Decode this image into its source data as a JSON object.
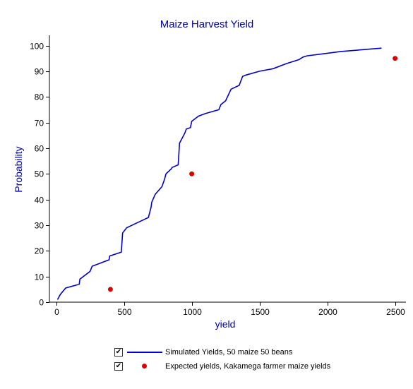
{
  "chart_data": {
    "type": "line",
    "title": "Maize Harvest Yield",
    "xlabel": "yield",
    "ylabel": "Probability",
    "xlim": [
      -50,
      2580
    ],
    "ylim": [
      0,
      104
    ],
    "x_ticks": [
      0,
      500,
      1000,
      1500,
      2000,
      2500
    ],
    "y_ticks": [
      0,
      10,
      20,
      30,
      40,
      50,
      60,
      70,
      80,
      90,
      100
    ],
    "x_tick_labels": [
      "0",
      "500",
      "1000",
      "1500",
      "2000",
      "2500"
    ],
    "y_tick_labels": [
      "0",
      "10",
      "20",
      "30",
      "40",
      "50",
      "60",
      "70",
      "80",
      "90",
      "100"
    ],
    "grid": false,
    "legend_position": "bottom",
    "series": [
      {
        "name": "Simulated Yields, 50 maize 50 beans",
        "type": "line",
        "color": "#0000cc",
        "checked": true,
        "x": [
          10,
          30,
          70,
          170,
          175,
          250,
          265,
          390,
          395,
          480,
          490,
          520,
          600,
          680,
          700,
          705,
          730,
          780,
          800,
          810,
          850,
          855,
          900,
          910,
          930,
          950,
          960,
          990,
          1000,
          1050,
          1100,
          1200,
          1215,
          1250,
          1290,
          1350,
          1375,
          1400,
          1500,
          1600,
          1700,
          1790,
          1820,
          1850,
          2000,
          2100,
          2400
        ],
        "y": [
          1,
          3,
          5.5,
          7,
          9,
          12,
          14,
          16.5,
          18,
          19.5,
          27,
          29,
          31,
          33,
          37,
          39,
          42,
          45,
          48,
          50,
          52,
          52.5,
          53.5,
          62,
          64,
          66,
          67.5,
          68,
          70.5,
          72.5,
          73.5,
          75,
          77,
          78.5,
          83,
          84.5,
          88,
          88.5,
          90,
          91,
          93,
          94.5,
          95.5,
          96,
          97,
          97.7,
          99
        ]
      },
      {
        "name": "Expected yields, Kakamega farmer maize yields",
        "type": "scatter",
        "color": "#dd0000",
        "checked": true,
        "x": [
          400,
          1000,
          2500
        ],
        "y": [
          5,
          50,
          95
        ]
      }
    ]
  },
  "legend": {
    "check_glyph": "✔",
    "items": [
      {
        "label": "Simulated Yields, 50 maize 50 beans"
      },
      {
        "label": "Expected yields, Kakamega farmer maize yields"
      }
    ]
  }
}
